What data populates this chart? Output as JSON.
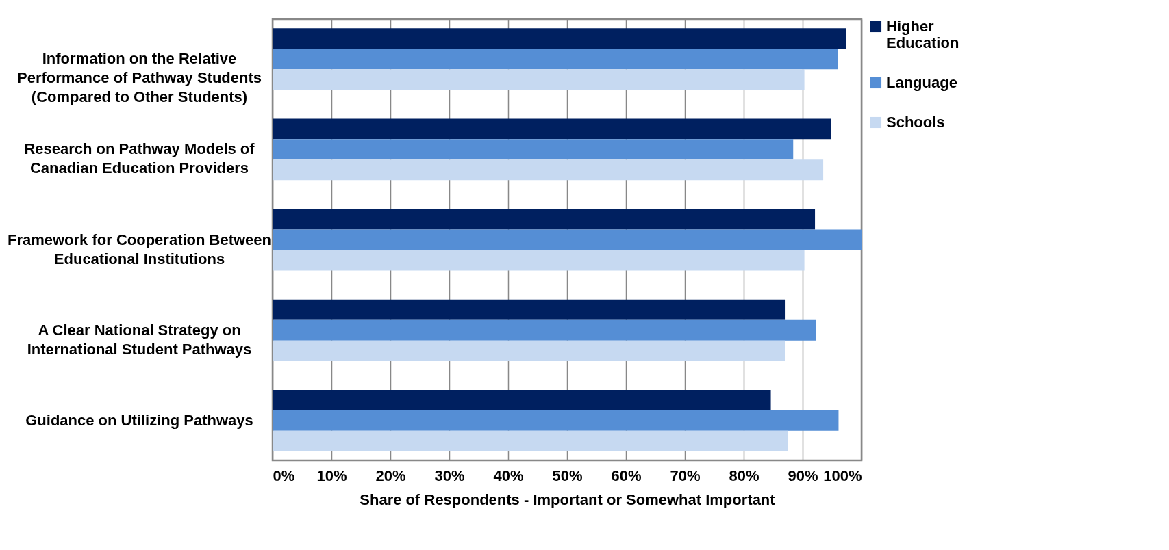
{
  "chart_data": {
    "type": "bar",
    "orientation": "horizontal",
    "xlabel": "Share of Respondents - Important or Somewhat Important",
    "categories": [
      "Information on the Relative Performance of Pathway Students (Compared to Other Students)",
      "Research on Pathway Models of Canadian Education Providers",
      "Framework for Cooperation Between Educational Institutions",
      "A Clear National Strategy on International Student Pathways",
      "Guidance on Utilizing Pathways"
    ],
    "series": [
      {
        "name": "Higher Education",
        "color": "#002060",
        "values": [
          97.4,
          94.8,
          92.1,
          87.1,
          84.6
        ]
      },
      {
        "name": "Language",
        "color": "#558ed5",
        "values": [
          96.0,
          88.4,
          100,
          92.3,
          96.1
        ]
      },
      {
        "name": "Schools",
        "color": "#c6d9f1",
        "values": [
          90.3,
          93.5,
          90.3,
          87.0,
          87.5
        ]
      }
    ],
    "xlim": [
      0,
      100
    ],
    "xticks": [
      {
        "value": 0,
        "label": "0%"
      },
      {
        "value": 10,
        "label": "10%"
      },
      {
        "value": 20,
        "label": "20%"
      },
      {
        "value": 30,
        "label": "30%"
      },
      {
        "value": 40,
        "label": "40%"
      },
      {
        "value": 50,
        "label": "50%"
      },
      {
        "value": 60,
        "label": "60%"
      },
      {
        "value": 70,
        "label": "70%"
      },
      {
        "value": 80,
        "label": "80%"
      },
      {
        "value": 90,
        "label": "90%"
      },
      {
        "value": 100,
        "label": "100%"
      }
    ],
    "grid": "x",
    "legend": "right"
  }
}
